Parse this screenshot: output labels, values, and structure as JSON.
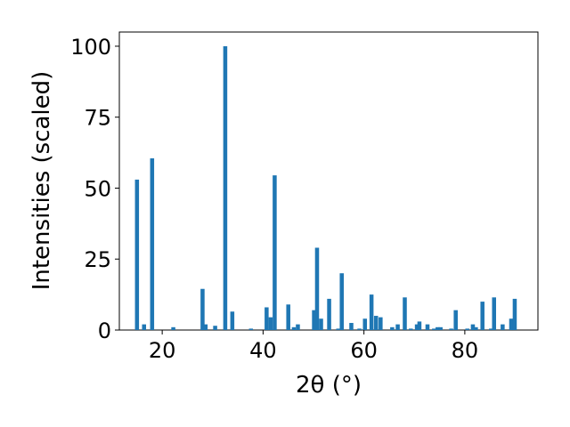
{
  "chart_data": {
    "type": "bar",
    "xlabel": "2θ (°)",
    "ylabel": "Intensities (scaled)",
    "xlim": [
      11.5,
      94.5
    ],
    "ylim": [
      0,
      105
    ],
    "xticks": [
      20,
      40,
      60,
      80
    ],
    "yticks": [
      0,
      25,
      50,
      75,
      100
    ],
    "bar_width_deg": 0.8,
    "color": "#1f77b4",
    "grid": false,
    "x": [
      15.0,
      16.4,
      18.0,
      22.2,
      28.0,
      28.6,
      30.5,
      32.5,
      33.9,
      37.6,
      40.7,
      41.5,
      42.3,
      45.0,
      46.1,
      46.9,
      50.1,
      50.7,
      51.5,
      53.1,
      54.9,
      55.6,
      57.5,
      59.1,
      60.2,
      61.5,
      62.4,
      63.3,
      65.6,
      66.7,
      68.1,
      69.3,
      70.5,
      71.0,
      72.6,
      73.9,
      74.6,
      75.2,
      77.3,
      78.2,
      80.5,
      81.6,
      82.2,
      83.5,
      85.2,
      85.8,
      87.5,
      89.2,
      89.9
    ],
    "values": [
      53,
      2,
      60.5,
      1,
      14.5,
      2,
      1.5,
      100,
      6.5,
      0.5,
      8,
      4.5,
      54.5,
      9,
      1,
      2,
      7,
      29,
      4,
      11,
      0.5,
      20,
      2.5,
      0.5,
      4,
      12.5,
      5,
      4.5,
      1,
      2,
      11.5,
      0.5,
      2,
      3,
      2,
      0.5,
      1,
      1,
      0.5,
      7,
      0.5,
      2,
      1,
      10,
      0.5,
      11.5,
      2,
      4,
      11
    ]
  }
}
